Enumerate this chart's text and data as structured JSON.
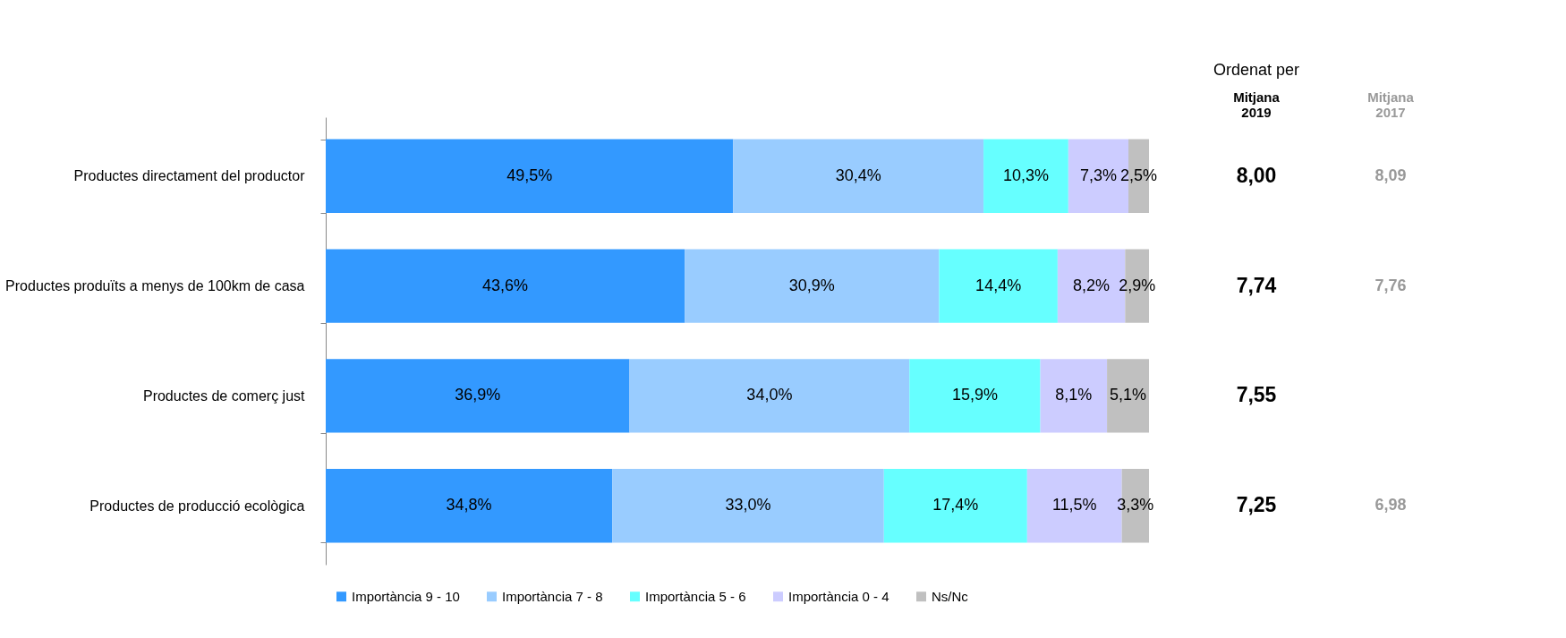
{
  "chart_data": {
    "type": "bar",
    "orientation": "horizontal",
    "stacked": true,
    "legend": "bottom",
    "tick_labels": "y",
    "categories": [
      "Productes directament del productor",
      "Productes produïts a menys de 100km de casa",
      "Productes de comerç just",
      "Productes de producció ecològica"
    ],
    "series": [
      {
        "name": "Importància 9 - 10",
        "color": "#3399ff",
        "values": [
          49.5,
          43.6,
          36.9,
          34.8
        ],
        "value_labels": [
          "49,5%",
          "43,6%",
          "36,9%",
          "34,8%"
        ]
      },
      {
        "name": "Importància 7 - 8",
        "color": "#99ccff",
        "values": [
          30.4,
          30.9,
          34.0,
          33.0
        ],
        "value_labels": [
          "30,4%",
          "30,9%",
          "34,0%",
          "33,0%"
        ]
      },
      {
        "name": "Importància 5 - 6",
        "color": "#66ffff",
        "values": [
          10.3,
          14.4,
          15.9,
          17.4
        ],
        "value_labels": [
          "10,3%",
          "14,4%",
          "15,9%",
          "17,4%"
        ]
      },
      {
        "name": "Importància 0 - 4",
        "color": "#ccccff",
        "values": [
          7.3,
          8.2,
          8.1,
          11.5
        ],
        "value_labels": [
          "7,3%",
          "8,2%",
          "8,1%",
          "11,5%"
        ]
      },
      {
        "name": "Ns/Nc",
        "color": "#c0c0c0",
        "values": [
          2.5,
          2.9,
          5.1,
          3.3
        ],
        "value_labels": [
          "2,5%",
          "2,9%",
          "5,1%",
          "3,3%"
        ]
      }
    ],
    "annotations": [
      "Ordenat per",
      "Mitjana 2019",
      "Mitjana 2017",
      "8,00",
      "8,09",
      "7,74",
      "7,76",
      "7,55",
      "7,25",
      "6,98"
    ]
  }
}
